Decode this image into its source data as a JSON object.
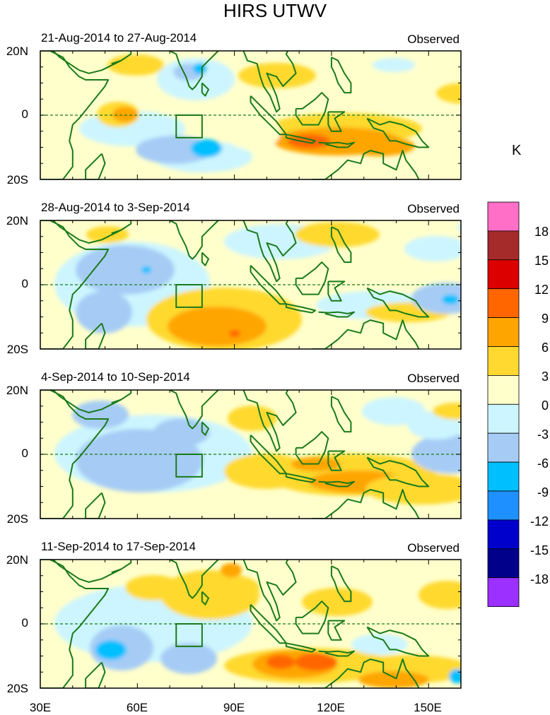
{
  "title": "HIRS UTWV",
  "unit_label": "K",
  "panels": [
    {
      "date_range": "21-Aug-2014 to 27-Aug-2014",
      "status": "Observed"
    },
    {
      "date_range": "28-Aug-2014 to 3-Sep-2014",
      "status": "Observed"
    },
    {
      "date_range": "4-Sep-2014 to 10-Sep-2014",
      "status": "Observed"
    },
    {
      "date_range": "11-Sep-2014 to 17-Sep-2014",
      "status": "Observed"
    }
  ],
  "y_ticks": [
    "20N",
    "0",
    "20S"
  ],
  "x_ticks": [
    "30E",
    "60E",
    "90E",
    "120E",
    "150E"
  ],
  "colorbar": {
    "labels": [
      "18",
      "15",
      "12",
      "9",
      "6",
      "3",
      "0",
      "-3",
      "-6",
      "-9",
      "-12",
      "-15",
      "-18"
    ],
    "colors": [
      "#ff6ec7",
      "#a52a2a",
      "#dc0000",
      "#ff6600",
      "#ffa500",
      "#ffd92f",
      "#ffffcc",
      "#ccf5ff",
      "#a6ccf5",
      "#00bfff",
      "#1e90ff",
      "#0000cd",
      "#00008b",
      "#9b30ff"
    ]
  },
  "chart_data": {
    "type": "map",
    "variable": "HIRS UTWV anomaly",
    "units": "K",
    "lon_range": [
      30,
      160
    ],
    "lat_range": [
      -20,
      20
    ],
    "contour_levels": [
      -18,
      -15,
      -12,
      -9,
      -6,
      -3,
      0,
      3,
      6,
      9,
      12,
      15,
      18
    ],
    "highlight_box": {
      "lon": [
        72,
        80
      ],
      "lat": [
        -7,
        0
      ]
    }
  },
  "colors": {
    "coast": "#1a7a1a",
    "equator": "#1a7a1a"
  }
}
